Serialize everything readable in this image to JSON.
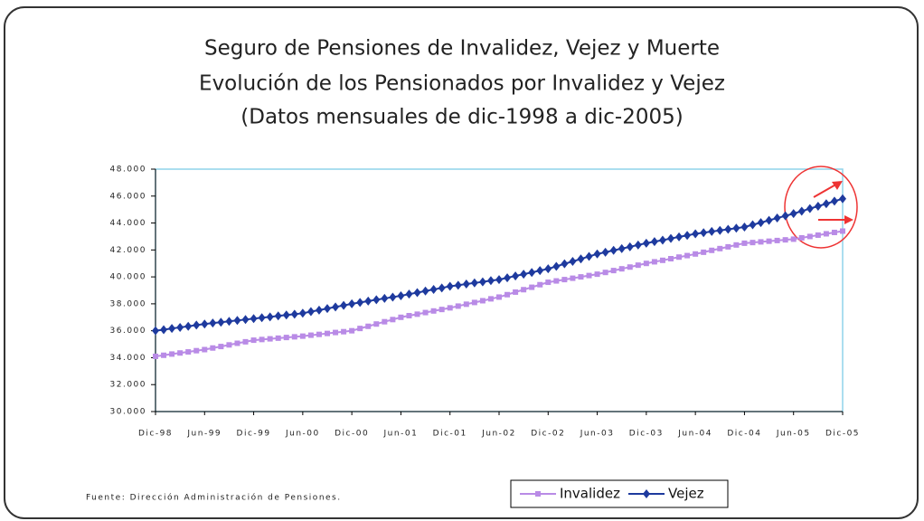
{
  "chart_data": {
    "type": "line",
    "title": "Seguro de Pensiones de Invalidez, Vejez y Muerte",
    "subtitle": "Evolución de los Pensionados por Invalidez y Vejez",
    "note": "(Datos mensuales de dic-1998 a dic-2005)",
    "source": "Fuente: Dirección Administración de Pensiones.",
    "categories": [
      "Dic-98",
      null,
      null,
      null,
      null,
      null,
      "Jun-99",
      null,
      null,
      null,
      null,
      null,
      "Dic-99",
      null,
      null,
      null,
      null,
      null,
      "Jun-00",
      null,
      null,
      null,
      null,
      null,
      "Dic-00",
      null,
      null,
      null,
      null,
      null,
      "Jun-01",
      null,
      null,
      null,
      null,
      null,
      "Dic-01",
      null,
      null,
      null,
      null,
      null,
      "Jun-02",
      null,
      null,
      null,
      null,
      null,
      "Dic-02",
      null,
      null,
      null,
      null,
      null,
      "Jun-03",
      null,
      null,
      null,
      null,
      null,
      "Dic-03",
      null,
      null,
      null,
      null,
      null,
      "Jun-04",
      null,
      null,
      null,
      null,
      null,
      "Dic-04",
      null,
      null,
      null,
      null,
      null,
      "Jun-05",
      null,
      null,
      null,
      null,
      null,
      "Dic-05"
    ],
    "series": [
      {
        "name": "Invalidez",
        "color": "#b98be6",
        "marker": "square",
        "values": [
          34100,
          34180,
          34270,
          34350,
          34430,
          34520,
          34600,
          34720,
          34830,
          34950,
          35070,
          35180,
          35300,
          35350,
          35400,
          35450,
          35500,
          35550,
          35600,
          35670,
          35730,
          35800,
          35870,
          35930,
          36000,
          36170,
          36330,
          36500,
          36670,
          36830,
          37000,
          37120,
          37230,
          37350,
          37470,
          37580,
          37700,
          37830,
          37970,
          38100,
          38230,
          38370,
          38500,
          38680,
          38870,
          39050,
          39230,
          39420,
          39600,
          39700,
          39800,
          39900,
          40000,
          40100,
          40200,
          40330,
          40470,
          40600,
          40730,
          40870,
          41000,
          41120,
          41230,
          41350,
          41470,
          41580,
          41700,
          41830,
          41970,
          42100,
          42230,
          42370,
          42500,
          42550,
          42600,
          42650,
          42700,
          42750,
          42800,
          42900,
          43000,
          43100,
          43200,
          43300,
          43400
        ]
      },
      {
        "name": "Vejez",
        "color": "#1e3a9e",
        "marker": "diamond",
        "values": [
          36000,
          36080,
          36170,
          36250,
          36330,
          36420,
          36500,
          36570,
          36630,
          36700,
          36770,
          36830,
          36900,
          36970,
          37030,
          37100,
          37170,
          37230,
          37300,
          37420,
          37530,
          37650,
          37770,
          37880,
          38000,
          38100,
          38200,
          38300,
          38400,
          38500,
          38600,
          38720,
          38830,
          38950,
          39070,
          39180,
          39300,
          39380,
          39470,
          39550,
          39630,
          39720,
          39800,
          39930,
          40070,
          40200,
          40330,
          40470,
          40600,
          40780,
          40970,
          41150,
          41330,
          41520,
          41700,
          41830,
          41970,
          42100,
          42230,
          42370,
          42500,
          42620,
          42730,
          42850,
          42970,
          43080,
          43200,
          43280,
          43370,
          43450,
          43530,
          43620,
          43700,
          43870,
          44030,
          44200,
          44370,
          44530,
          44700,
          44880,
          45070,
          45250,
          45430,
          45620,
          45800
        ]
      }
    ],
    "ylim": [
      30000,
      48000
    ],
    "yticks": [
      {
        "value": 30000,
        "label": "30.000"
      },
      {
        "value": 32000,
        "label": "32.000"
      },
      {
        "value": 34000,
        "label": "34.000"
      },
      {
        "value": 36000,
        "label": "36.000"
      },
      {
        "value": 38000,
        "label": "38.000"
      },
      {
        "value": 40000,
        "label": "40.000"
      },
      {
        "value": 42000,
        "label": "42.000"
      },
      {
        "value": 44000,
        "label": "44.000"
      },
      {
        "value": 46000,
        "label": "46.000"
      },
      {
        "value": 48000,
        "label": "48.000"
      }
    ],
    "grid": false,
    "legend": "bottom"
  }
}
